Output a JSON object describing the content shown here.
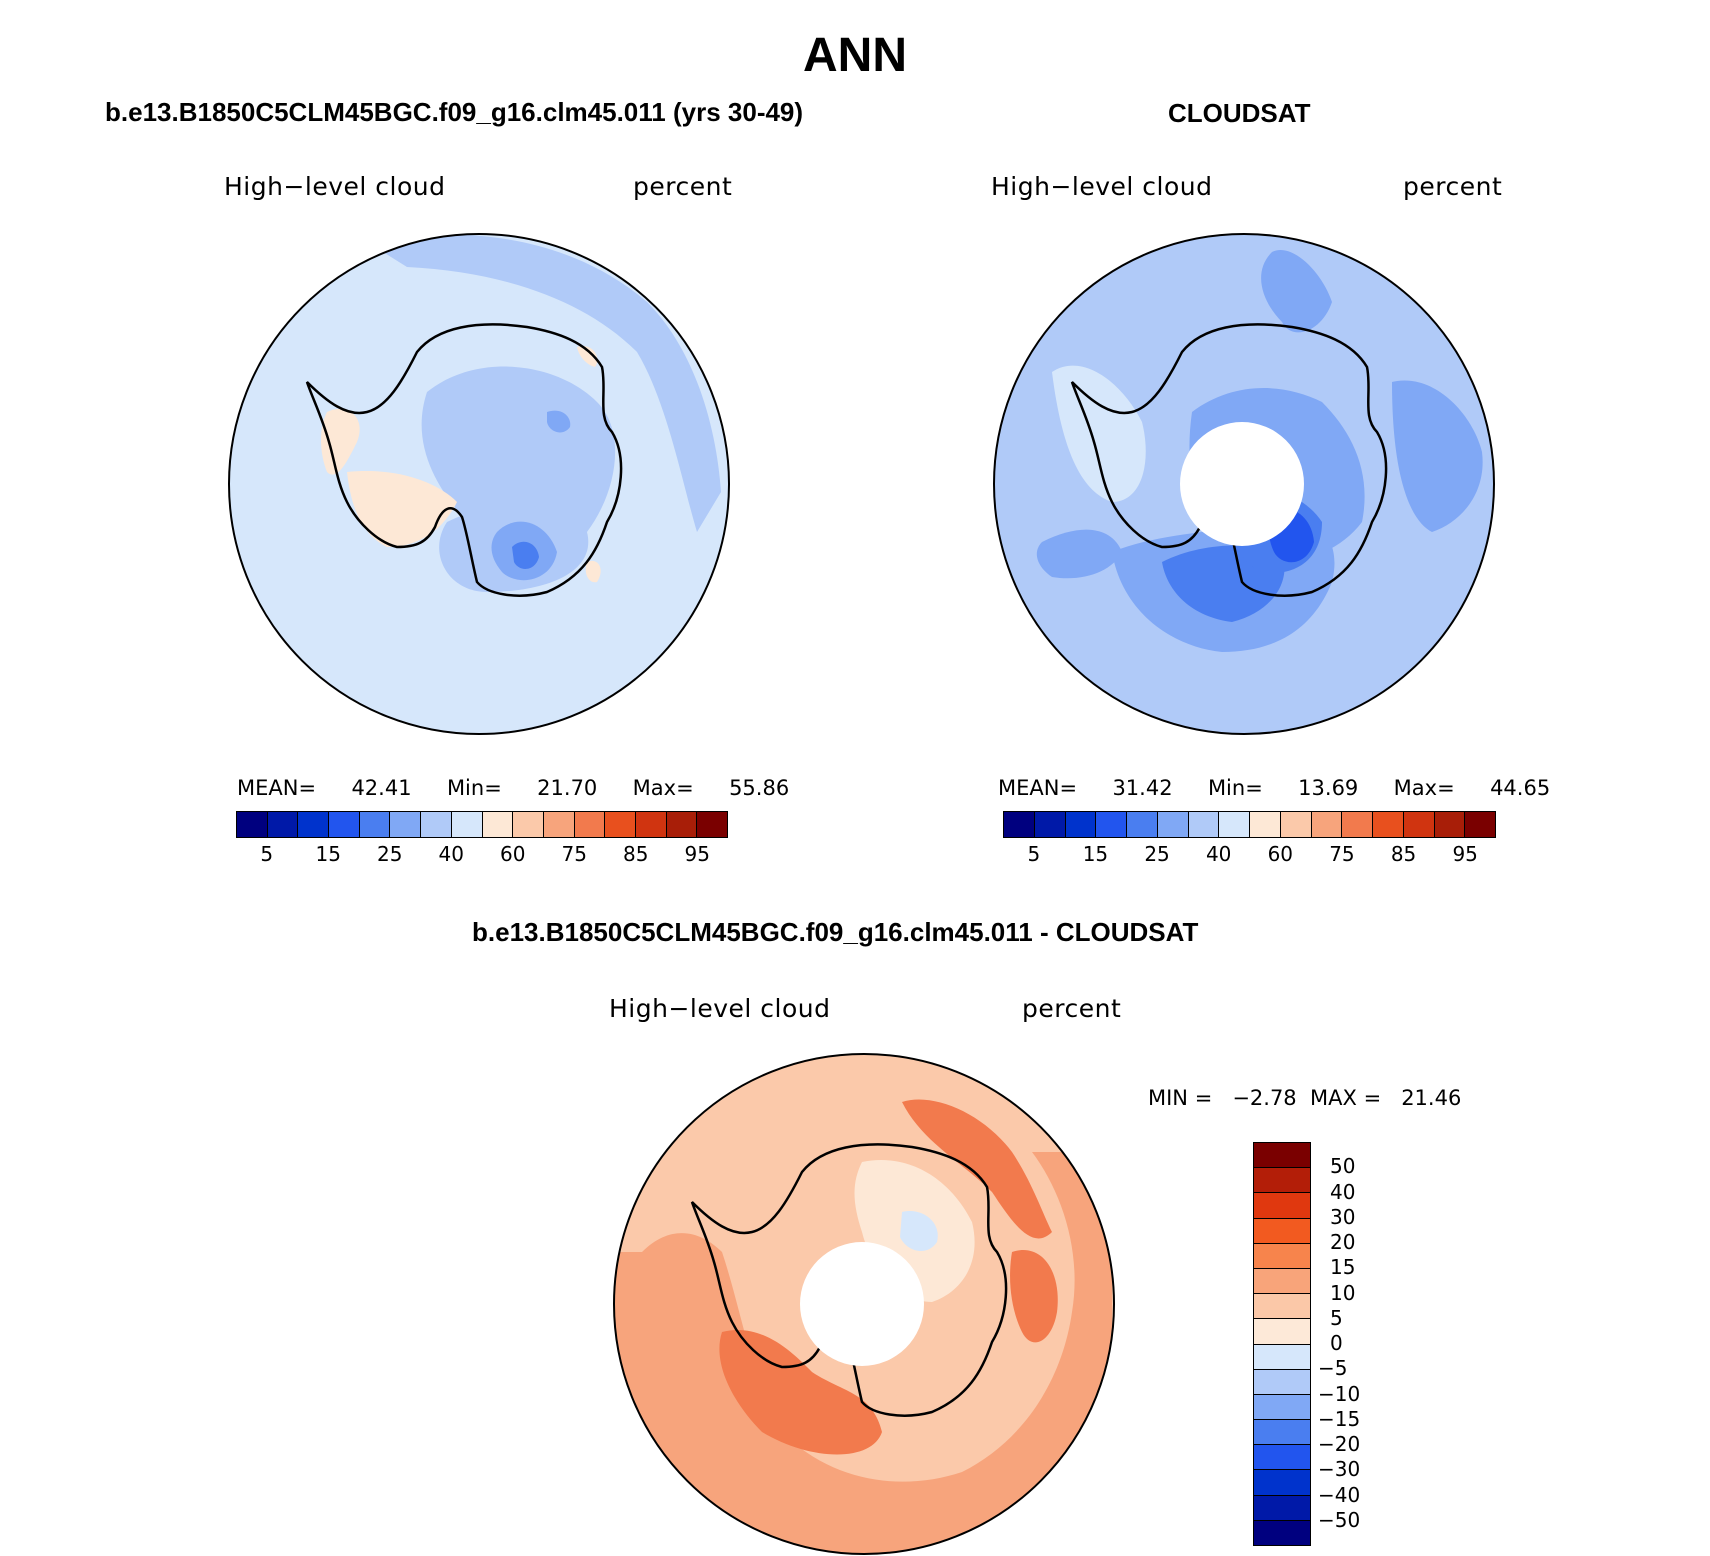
{
  "title": "ANN",
  "panels": {
    "model": {
      "title": "b.e13.B1850C5CLM45BGC.f09_g16.clm45.011 (yrs 30-49)",
      "label_left": "High−level cloud",
      "label_right": "percent",
      "stats": {
        "mean_label": "MEAN=",
        "mean": "42.41",
        "min_label": "Min=",
        "min": "21.70",
        "max_label": "Max=",
        "max": "55.86"
      }
    },
    "obs": {
      "title": "CLOUDSAT",
      "label_left": "High−level cloud",
      "label_right": "percent",
      "stats": {
        "mean_label": "MEAN=",
        "mean": "31.42",
        "min_label": "Min=",
        "min": "13.69",
        "max_label": "Max=",
        "max": "44.65"
      }
    },
    "diff": {
      "title": "b.e13.B1850C5CLM45BGC.f09_g16.clm45.011 - CLOUDSAT",
      "label_left": "High−level cloud",
      "label_right": "percent",
      "minmax": "MIN =   −2.78  MAX =   21.46"
    }
  },
  "colorbar_abs": {
    "colors": [
      "#00007f",
      "#0019a8",
      "#0033cc",
      "#2255ee",
      "#4a7ef0",
      "#80a8f5",
      "#b0caf8",
      "#d6e7fb",
      "#fde8d6",
      "#fbc9aa",
      "#f7a47c",
      "#f27a4d",
      "#e8501e",
      "#d03410",
      "#a81e08",
      "#7a0000"
    ],
    "ticks": [
      "5",
      "15",
      "25",
      "40",
      "60",
      "75",
      "85",
      "95"
    ]
  },
  "colorbar_diff": {
    "colors": [
      "#7a0000",
      "#b31e08",
      "#e0380f",
      "#f25a20",
      "#f7844c",
      "#f8a47a",
      "#fbc8a8",
      "#fde9d8",
      "#d6e7fb",
      "#b0caf8",
      "#80a8f5",
      "#4a7ef0",
      "#2255ee",
      "#0033cc",
      "#0019a8",
      "#00007f"
    ],
    "ticks": [
      "50",
      "40",
      "30",
      "20",
      "15",
      "10",
      "5",
      "0",
      "−5",
      "−10",
      "−15",
      "−20",
      "−30",
      "−40",
      "−50"
    ]
  }
}
